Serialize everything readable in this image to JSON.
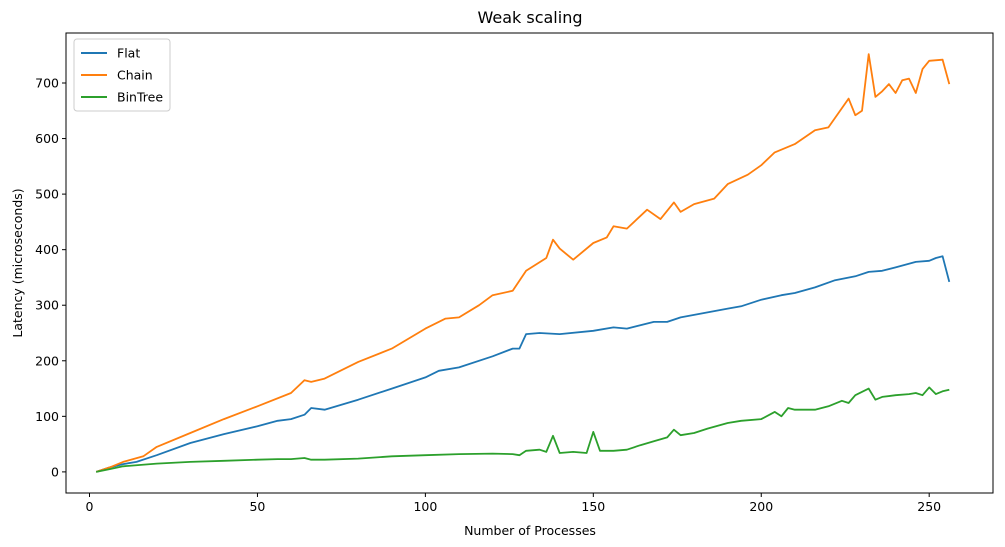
{
  "chart_data": {
    "type": "line",
    "title": "Weak scaling",
    "xlabel": "Number of Processes",
    "ylabel": "Latency (microseconds)",
    "xlim": [
      -7,
      269
    ],
    "ylim": [
      -38,
      790
    ],
    "xticks": [
      0,
      50,
      100,
      150,
      200,
      250
    ],
    "yticks": [
      0,
      100,
      200,
      300,
      400,
      500,
      600,
      700
    ],
    "grid": false,
    "legend_position": "top-left",
    "series": [
      {
        "name": "Flat",
        "color": "#1f77b4",
        "x": [
          2,
          6,
          10,
          14,
          20,
          30,
          40,
          50,
          56,
          60,
          64,
          66,
          70,
          80,
          90,
          100,
          104,
          110,
          120,
          126,
          128,
          130,
          134,
          140,
          150,
          156,
          160,
          168,
          172,
          176,
          182,
          190,
          194,
          200,
          206,
          210,
          216,
          222,
          228,
          232,
          236,
          240,
          246,
          250,
          252,
          254,
          256
        ],
        "y": [
          0,
          8,
          14,
          18,
          30,
          52,
          68,
          82,
          92,
          95,
          103,
          115,
          112,
          130,
          150,
          170,
          182,
          188,
          208,
          222,
          222,
          248,
          250,
          248,
          254,
          260,
          258,
          270,
          270,
          278,
          285,
          294,
          298,
          310,
          318,
          322,
          332,
          345,
          352,
          360,
          362,
          368,
          378,
          380,
          385,
          388,
          342
        ]
      },
      {
        "name": "Chain",
        "color": "#ff7f0e",
        "x": [
          2,
          6,
          10,
          16,
          20,
          30,
          40,
          50,
          60,
          64,
          66,
          70,
          80,
          90,
          100,
          106,
          110,
          116,
          120,
          126,
          130,
          136,
          138,
          140,
          144,
          150,
          154,
          156,
          160,
          166,
          170,
          174,
          176,
          180,
          186,
          190,
          196,
          200,
          204,
          210,
          216,
          220,
          226,
          228,
          230,
          232,
          234,
          236,
          238,
          240,
          242,
          244,
          246,
          248,
          250,
          254,
          256
        ],
        "y": [
          0,
          8,
          18,
          28,
          45,
          70,
          95,
          118,
          142,
          165,
          162,
          168,
          198,
          222,
          258,
          276,
          278,
          300,
          318,
          326,
          362,
          385,
          418,
          402,
          382,
          412,
          422,
          442,
          438,
          472,
          455,
          485,
          468,
          482,
          492,
          518,
          535,
          552,
          575,
          590,
          615,
          620,
          672,
          642,
          650,
          752,
          675,
          685,
          698,
          682,
          705,
          708,
          682,
          725,
          740,
          742,
          698
        ]
      },
      {
        "name": "BinTree",
        "color": "#2ca02c",
        "x": [
          2,
          6,
          10,
          20,
          30,
          40,
          50,
          56,
          60,
          64,
          66,
          70,
          80,
          90,
          100,
          110,
          120,
          126,
          128,
          130,
          134,
          136,
          138,
          140,
          144,
          148,
          150,
          152,
          156,
          160,
          164,
          168,
          172,
          174,
          176,
          180,
          184,
          190,
          194,
          200,
          204,
          206,
          208,
          210,
          216,
          220,
          224,
          226,
          228,
          232,
          234,
          236,
          240,
          244,
          246,
          248,
          250,
          252,
          254,
          256
        ],
        "y": [
          0,
          5,
          10,
          15,
          18,
          20,
          22,
          23,
          23,
          25,
          22,
          22,
          24,
          28,
          30,
          32,
          33,
          32,
          30,
          38,
          40,
          36,
          65,
          34,
          36,
          34,
          72,
          38,
          38,
          40,
          48,
          55,
          62,
          76,
          66,
          70,
          78,
          88,
          92,
          95,
          108,
          100,
          115,
          112,
          112,
          118,
          128,
          124,
          138,
          150,
          130,
          135,
          138,
          140,
          142,
          138,
          152,
          140,
          145,
          148
        ]
      }
    ]
  }
}
